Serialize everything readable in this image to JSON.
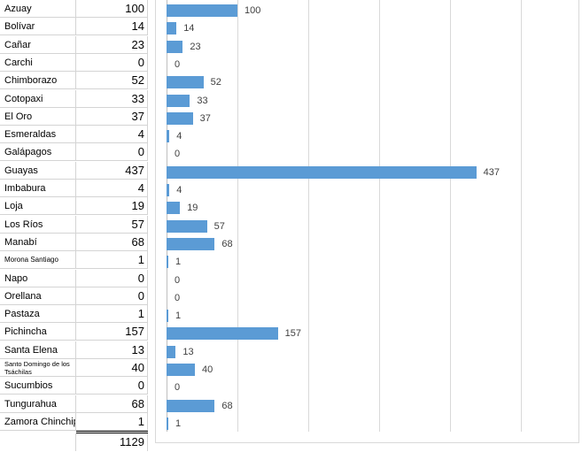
{
  "table": {
    "rows": [
      {
        "name": "Azuay",
        "value": "100"
      },
      {
        "name": "Bolívar",
        "value": "14"
      },
      {
        "name": "Cañar",
        "value": "23"
      },
      {
        "name": "Carchi",
        "value": "0"
      },
      {
        "name": "Chimborazo",
        "value": "52"
      },
      {
        "name": "Cotopaxi",
        "value": "33"
      },
      {
        "name": "El Oro",
        "value": "37"
      },
      {
        "name": "Esmeraldas",
        "value": "4"
      },
      {
        "name": "Galápagos",
        "value": "0"
      },
      {
        "name": "Guayas",
        "value": "437"
      },
      {
        "name": "Imbabura",
        "value": "4"
      },
      {
        "name": "Loja",
        "value": "19"
      },
      {
        "name": "Los Ríos",
        "value": "57"
      },
      {
        "name": "Manabí",
        "value": "68"
      },
      {
        "name": "Morona Santiago",
        "value": "1"
      },
      {
        "name": "Napo",
        "value": "0"
      },
      {
        "name": "Orellana",
        "value": "0"
      },
      {
        "name": "Pastaza",
        "value": "1"
      },
      {
        "name": "Pichincha",
        "value": "157"
      },
      {
        "name": "Santa Elena",
        "value": "13"
      },
      {
        "name": "Santo Domingo de los Tsáchilas",
        "value": "40"
      },
      {
        "name": "Sucumbios",
        "value": "0"
      },
      {
        "name": "Tungurahua",
        "value": "68"
      },
      {
        "name": "Zamora Chinchipe",
        "value": "1"
      }
    ],
    "total": "1129"
  },
  "chart_data": {
    "type": "bar",
    "orientation": "horizontal",
    "categories": [
      "Azuay",
      "Bolívar",
      "Cañar",
      "Carchi",
      "Chimborazo",
      "Cotopaxi",
      "El Oro",
      "Esmeraldas",
      "Galápagos",
      "Guayas",
      "Imbabura",
      "Loja",
      "Los Ríos",
      "Manabí",
      "Morona Santiago",
      "Napo",
      "Orellana",
      "Pastaza",
      "Pichincha",
      "Santa Elena",
      "Santo Domingo de los Tsáchilas",
      "Sucumbios",
      "Tungurahua",
      "Zamora Chinchipe"
    ],
    "values": [
      100,
      14,
      23,
      0,
      52,
      33,
      37,
      4,
      0,
      437,
      4,
      19,
      57,
      68,
      1,
      0,
      0,
      1,
      157,
      13,
      40,
      0,
      68,
      1
    ],
    "data_labels": [
      "100",
      "14",
      "23",
      "0",
      "52",
      "33",
      "37",
      "4",
      "0",
      "437",
      "4",
      "19",
      "57",
      "68",
      "1",
      "0",
      "0",
      "1",
      "157",
      "13",
      "40",
      "0",
      "68",
      "1"
    ],
    "xlim": [
      0,
      500
    ],
    "grid": true,
    "bar_color": "#5b9bd5",
    "title": "",
    "xlabel": "",
    "ylabel": ""
  }
}
